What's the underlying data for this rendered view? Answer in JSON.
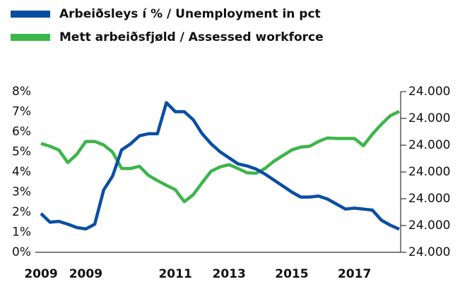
{
  "chart_data": {
    "type": "line",
    "legend": {
      "position": "top-left"
    },
    "categories": [
      "2009",
      null,
      null,
      null,
      null,
      "2009",
      null,
      null,
      null,
      null,
      null,
      null,
      null,
      null,
      null,
      "2011",
      null,
      null,
      null,
      null,
      null,
      "2013",
      null,
      null,
      null,
      null,
      null,
      null,
      "2015",
      null,
      null,
      null,
      null,
      null,
      null,
      "2017",
      null,
      null,
      null,
      null,
      null
    ],
    "series": [
      {
        "name": "Arbeiðsleys í % / Unemployment in pct",
        "color": "#0a4ea3",
        "axis": "y",
        "values": [
          1.93,
          1.5,
          1.54,
          1.4,
          1.23,
          1.16,
          1.4,
          3.1,
          3.8,
          5.1,
          5.4,
          5.8,
          5.9,
          5.9,
          7.45,
          7.0,
          7.0,
          6.6,
          5.9,
          5.4,
          5.0,
          4.7,
          4.4,
          4.3,
          4.15,
          3.9,
          3.6,
          3.3,
          3.0,
          2.75,
          2.75,
          2.8,
          2.65,
          2.4,
          2.15,
          2.2,
          2.15,
          2.1,
          1.6,
          1.35,
          1.15
        ]
      },
      {
        "name": "Mett arbeiðsfjøld / Assessed workforce",
        "color": "#3cb54a",
        "axis": "y2",
        "values": [
          24106,
          24096,
          24082,
          24035,
          24066,
          24114,
          24114,
          24101,
          24074,
          24013,
          24013,
          24021,
          23987,
          23968,
          23950,
          23934,
          23889,
          23915,
          23960,
          24003,
          24019,
          24027,
          24013,
          23997,
          23995,
          24013,
          24040,
          24061,
          24082,
          24093,
          24096,
          24114,
          24127,
          24125,
          24125,
          24125,
          24098,
          24141,
          24178,
          24210,
          24226
        ]
      }
    ],
    "ylim": [
      0,
      8
    ],
    "yticks": [
      {
        "value": 0,
        "label": "0%"
      },
      {
        "value": 1,
        "label": "1%"
      },
      {
        "value": 2,
        "label": "2%"
      },
      {
        "value": 3,
        "label": "3%"
      },
      {
        "value": 4,
        "label": "4%"
      },
      {
        "value": 5,
        "label": "5%"
      },
      {
        "value": 6,
        "label": "6%"
      },
      {
        "value": 7,
        "label": "7%"
      },
      {
        "value": 8,
        "label": "8%"
      }
    ],
    "y2lim": [
      23700,
      24300
    ],
    "y2ticks": [
      {
        "value": 23700,
        "label": "24.000"
      },
      {
        "value": 23800,
        "label": "24.000"
      },
      {
        "value": 23900,
        "label": "24.000"
      },
      {
        "value": 24000,
        "label": "24.000"
      },
      {
        "value": 24100,
        "label": "24.000"
      },
      {
        "value": 24200,
        "label": "24.000"
      },
      {
        "value": 24300,
        "label": "24.000"
      }
    ]
  }
}
